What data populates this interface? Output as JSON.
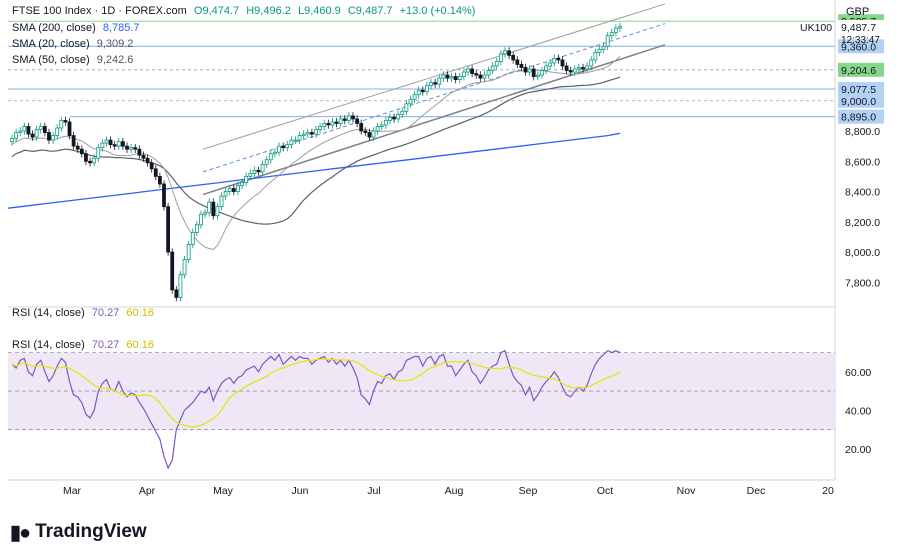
{
  "legend": {
    "symbol": "FTSE 100 Index · 1D · FOREX.com",
    "open": "O9,474.7",
    "high": "H9,496.2",
    "low": "L9,460.9",
    "close": "C9,487.7",
    "change": "+13.0 (+0.14%)",
    "sma200_label": "SMA (200, close)",
    "sma200_value": "8,785.7",
    "sma20_label": "SMA (20, close)",
    "sma20_value": "9,309.2",
    "sma50_label": "SMA (50, close)",
    "sma50_value": "9,242.6",
    "rsi_label": "RSI (14, close)",
    "rsi_value": "70.27",
    "rsi_ma_value": "60.16"
  },
  "currency": "GBP",
  "instrument_tag": "UK100",
  "countdown": "12:33:47",
  "footer": {
    "brand": "TradingView"
  },
  "price_tags": [
    {
      "text": "9,525.7",
      "bg": "#86d68a",
      "fg": "#131722"
    },
    {
      "text": "9,487.7",
      "bg": "#ffffff",
      "fg": "#131722"
    },
    {
      "text": "9,360.0",
      "bg": "#b3d0f5",
      "fg": "#131722"
    },
    {
      "text": "9,204.6",
      "bg": "#86d68a",
      "fg": "#131722"
    },
    {
      "text": "9,077.5",
      "bg": "#b3d0f5",
      "fg": "#131722"
    },
    {
      "text": "9,000.0",
      "bg": "#b3d0f5",
      "fg": "#131722"
    },
    {
      "text": "8,895.0",
      "bg": "#b3d0f5",
      "fg": "#131722"
    }
  ],
  "colors": {
    "up": "#089981",
    "down": "#131722",
    "sma200": "#2962ff",
    "sma20": "#9e9e9e",
    "sma50": "#606060",
    "rsi": "#7e57c2",
    "rsi_ma": "#e6e600",
    "rsi_band": "#ede7f6"
  },
  "chart_data": [
    {
      "type": "candlestick",
      "title": "FTSE 100 Index · 1D · FOREX.com",
      "x_ticks": [
        "Mar",
        "Apr",
        "May",
        "Jun",
        "Jul",
        "Aug",
        "Sep",
        "Oct",
        "Nov",
        "Dec",
        "20"
      ],
      "y_ticks": [
        "7,800.0",
        "8,000.0",
        "8,200.0",
        "8,400.0",
        "8,600.0",
        "8,800.0",
        "9,000.0",
        "9,204.6",
        "9,360.0"
      ],
      "ylim": [
        7650,
        9600
      ],
      "close_series": [
        8750,
        8790,
        8800,
        8830,
        8780,
        8760,
        8810,
        8830,
        8790,
        8740,
        8770,
        8820,
        8870,
        8860,
        8770,
        8700,
        8680,
        8650,
        8600,
        8590,
        8620,
        8690,
        8720,
        8740,
        8710,
        8700,
        8730,
        8700,
        8680,
        8690,
        8680,
        8640,
        8620,
        8590,
        8550,
        8500,
        8450,
        8300,
        8000,
        7750,
        7700,
        7850,
        7950,
        8050,
        8130,
        8180,
        8250,
        8260,
        8330,
        8240,
        8300,
        8370,
        8400,
        8420,
        8400,
        8440,
        8460,
        8500,
        8520,
        8540,
        8530,
        8580,
        8610,
        8650,
        8660,
        8700,
        8690,
        8710,
        8740,
        8740,
        8770,
        8780,
        8790,
        8780,
        8810,
        8830,
        8850,
        8840,
        8860,
        8850,
        8880,
        8870,
        8900,
        8880,
        8850,
        8800,
        8790,
        8760,
        8800,
        8830,
        8840,
        8870,
        8890,
        8880,
        8910,
        8930,
        8980,
        9010,
        9040,
        9070,
        9060,
        9100,
        9120,
        9110,
        9150,
        9170,
        9150,
        9160,
        9140,
        9160,
        9190,
        9210,
        9180,
        9170,
        9150,
        9170,
        9200,
        9230,
        9260,
        9310,
        9330,
        9300,
        9270,
        9240,
        9220,
        9190,
        9210,
        9160,
        9170,
        9200,
        9230,
        9250,
        9280,
        9270,
        9230,
        9200,
        9190,
        9210,
        9220,
        9210,
        9230,
        9270,
        9320,
        9340,
        9360,
        9430,
        9450,
        9480,
        9490
      ],
      "sma200_series": [
        8290,
        8300,
        8310,
        8320,
        8330,
        8340,
        8350,
        8360,
        8370,
        8380,
        8390,
        8400,
        8410,
        8420,
        8430,
        8440,
        8450,
        8460,
        8470,
        8480,
        8490,
        8500,
        8510,
        8520,
        8530,
        8540,
        8550,
        8560,
        8570,
        8580,
        8590,
        8600,
        8610,
        8620,
        8630,
        8640,
        8650,
        8660,
        8670,
        8680,
        8690,
        8700,
        8710,
        8720,
        8730,
        8740,
        8750,
        8760,
        8770,
        8785
      ],
      "rsi_series": [
        64,
        62,
        66,
        67,
        60,
        58,
        64,
        66,
        60,
        55,
        58,
        63,
        67,
        65,
        55,
        48,
        47,
        44,
        38,
        36,
        40,
        50,
        54,
        56,
        51,
        50,
        55,
        50,
        47,
        49,
        48,
        44,
        41,
        37,
        33,
        29,
        25,
        16,
        10,
        14,
        30,
        35,
        40,
        42,
        44,
        47,
        50,
        49,
        52,
        45,
        50,
        54,
        56,
        57,
        54,
        57,
        58,
        61,
        62,
        63,
        60,
        64,
        66,
        68,
        66,
        69,
        64,
        66,
        68,
        66,
        68,
        67,
        67,
        64,
        66,
        67,
        68,
        65,
        67,
        64,
        66,
        63,
        66,
        62,
        57,
        48,
        46,
        43,
        50,
        55,
        54,
        58,
        59,
        56,
        60,
        61,
        66,
        67,
        68,
        68,
        63,
        67,
        68,
        64,
        68,
        69,
        63,
        63,
        58,
        61,
        64,
        66,
        60,
        58,
        54,
        57,
        61,
        63,
        64,
        70,
        71,
        64,
        58,
        55,
        53,
        48,
        52,
        45,
        48,
        52,
        55,
        57,
        60,
        57,
        52,
        48,
        47,
        50,
        52,
        50,
        53,
        59,
        64,
        67,
        69,
        71,
        70,
        71,
        70
      ]
    }
  ]
}
